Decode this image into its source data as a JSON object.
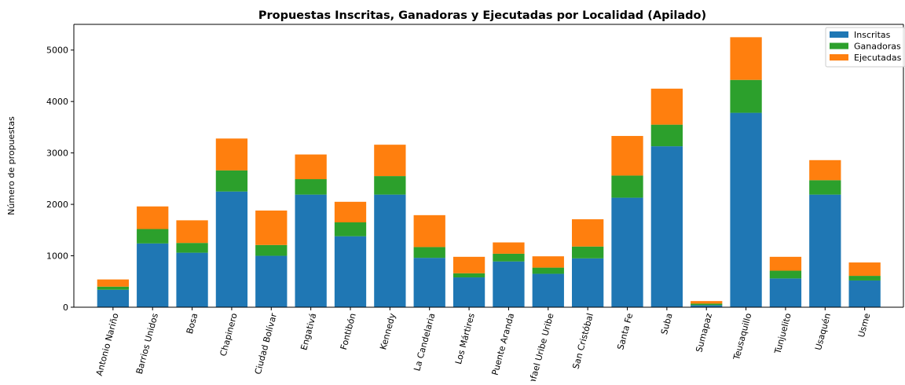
{
  "chart_data": {
    "type": "bar",
    "stacked": true,
    "title": "Propuestas Inscritas, Ganadoras y Ejecutadas por Localidad (Apilado)",
    "xlabel": "",
    "ylabel": "Número de propuestas",
    "ylim": [
      0,
      5500
    ],
    "yticks": [
      0,
      1000,
      2000,
      3000,
      4000,
      5000
    ],
    "grid": false,
    "legend_position": "top-right",
    "categories": [
      "Antonio Nariño",
      "Barrios Unidos",
      "Bosa",
      "Chapinero",
      "Ciudad Bolívar",
      "Engativá",
      "Fontibón",
      "Kennedy",
      "La Candelaria",
      "Los Mártires",
      "Puente Aranda",
      "Rafael Uribe Uribe",
      "San Cristóbal",
      "Santa Fe",
      "Suba",
      "Sumapaz",
      "Teusaquillo",
      "Tunjuelito",
      "Usaquén",
      "Usme"
    ],
    "series": [
      {
        "name": "Inscritas",
        "color": "#1f77b4",
        "values": [
          340,
          1240,
          1060,
          2250,
          1000,
          2190,
          1380,
          2190,
          960,
          580,
          890,
          650,
          950,
          2130,
          3130,
          40,
          3780,
          560,
          2190,
          520
        ]
      },
      {
        "name": "Ganadoras",
        "color": "#2ca02c",
        "values": [
          60,
          280,
          190,
          410,
          210,
          300,
          270,
          360,
          210,
          80,
          150,
          120,
          230,
          430,
          420,
          30,
          640,
          150,
          280,
          90
        ]
      },
      {
        "name": "Ejecutadas",
        "color": "#ff7f0e",
        "values": [
          140,
          440,
          440,
          620,
          670,
          480,
          400,
          610,
          620,
          320,
          220,
          220,
          530,
          770,
          700,
          50,
          830,
          270,
          390,
          260
        ]
      }
    ]
  }
}
